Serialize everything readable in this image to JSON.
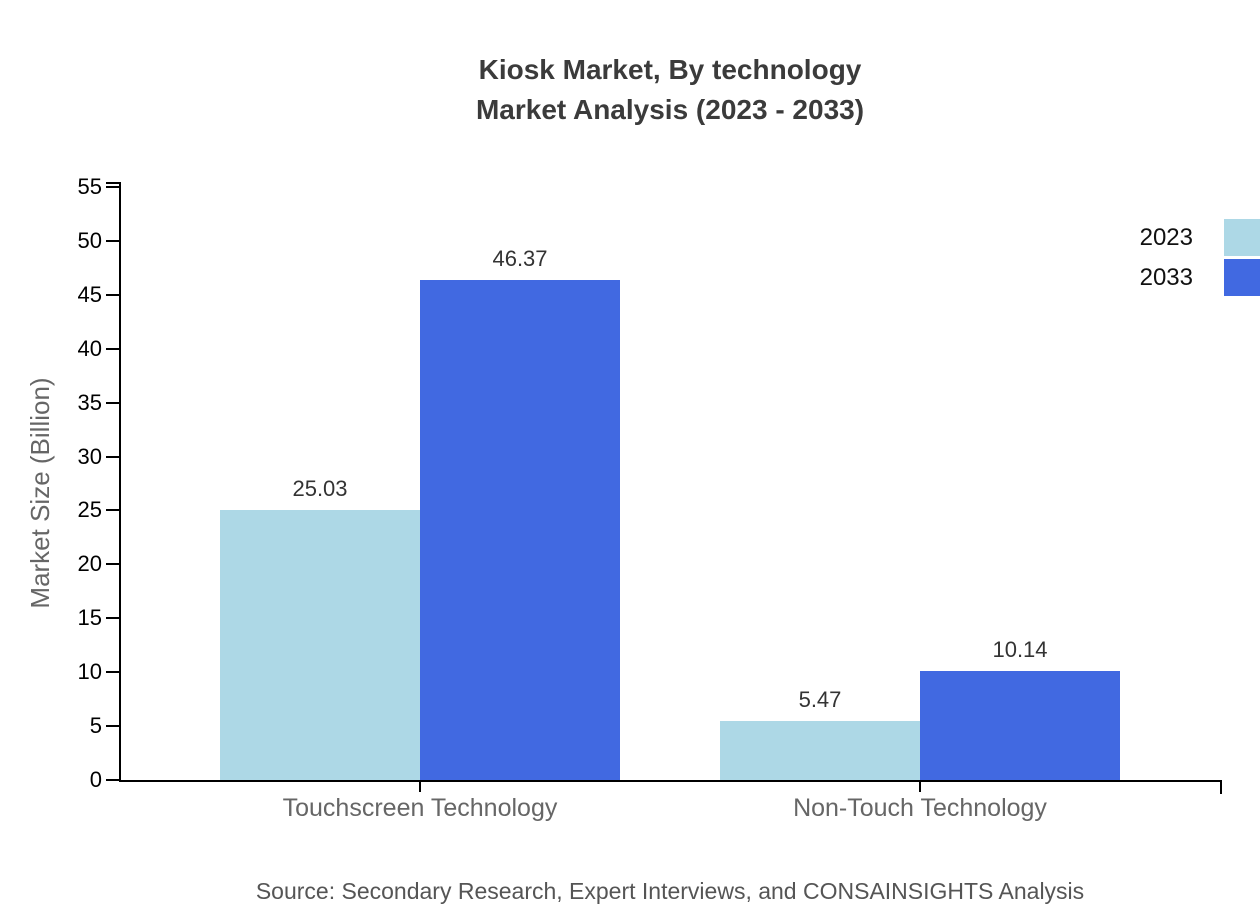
{
  "title": {
    "line1": "Kiosk Market, By technology",
    "line2": "Market Analysis (2023 - 2033)"
  },
  "source_text": "Source: Secondary Research, Expert Interviews, and CONSAINSIGHTS Analysis",
  "chart_data": {
    "type": "bar",
    "title": "Kiosk Market, By technology Market Analysis (2023 - 2033)",
    "categories": [
      "Touchscreen Technology",
      "Non-Touch Technology"
    ],
    "series": [
      {
        "name": "2023",
        "color": "#ADD8E6",
        "values": [
          25.03,
          5.47
        ]
      },
      {
        "name": "2033",
        "color": "#4169E1",
        "values": [
          46.37,
          10.14
        ]
      }
    ],
    "xlabel": "",
    "ylabel": "Market Size (Billion)",
    "ylim": [
      0,
      55
    ],
    "ytick_step": 5,
    "ytick_labels": [
      "0",
      "5",
      "10",
      "15",
      "20",
      "25",
      "30",
      "35",
      "40",
      "45",
      "50",
      "55"
    ],
    "value_label_decimals": 2,
    "grid": false,
    "legend_position": "top-right",
    "axis_color": "#000000",
    "text_colors": {
      "title": "#3b3b3b",
      "tick_labels": "#000000",
      "category_labels": "#666666",
      "value_labels": "#333333",
      "y_axis_title": "#666666",
      "source": "#555555"
    }
  }
}
